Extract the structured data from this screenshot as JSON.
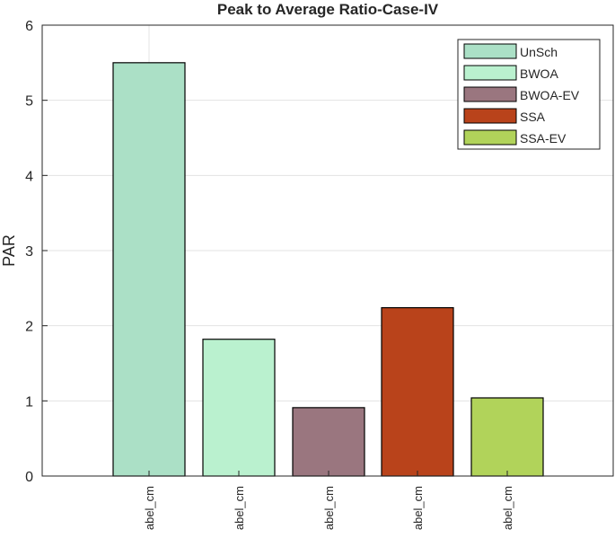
{
  "chart_data": {
    "type": "bar",
    "title": "Peak to Average Ratio-Case-IV",
    "xlabel": "",
    "ylabel": "PAR",
    "categories": [
      "abel_cm",
      "abel_cm",
      "abel_cm",
      "abel_cm",
      "abel_cm"
    ],
    "series": [
      {
        "name": "UnSch",
        "value": 5.5,
        "color": "#abe0c6"
      },
      {
        "name": "BWOA",
        "value": 1.82,
        "color": "#baf1cf"
      },
      {
        "name": "BWOA-EV",
        "value": 0.91,
        "color": "#9a767f"
      },
      {
        "name": "SSA",
        "value": 2.24,
        "color": "#b9431b"
      },
      {
        "name": "SSA-EV",
        "value": 1.04,
        "color": "#b1d35a"
      }
    ],
    "ylim": [
      0,
      6
    ],
    "yticks": [
      "0",
      "1",
      "2",
      "3",
      "4",
      "5",
      "6"
    ],
    "grid": true,
    "legend_position": "top-right"
  }
}
